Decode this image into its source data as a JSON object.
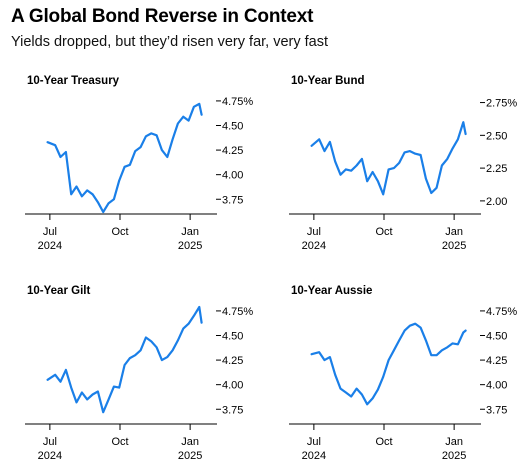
{
  "header": {
    "title": "A Global Bond Reverse in Context",
    "subtitle": "Yields dropped, but they’d risen very far, very fast"
  },
  "colors": {
    "line": "#1a7fe8",
    "axis": "#000000"
  },
  "chart_data": [
    {
      "type": "line",
      "title": "10-Year Treasury",
      "x_ticks": [
        {
          "value": "2024-07",
          "label": "Jul",
          "sub": "2024"
        },
        {
          "value": "2024-10",
          "label": "Oct",
          "sub": ""
        },
        {
          "value": "2025-01",
          "label": "Jan",
          "sub": "2025"
        }
      ],
      "y_ticks": [
        "3.75",
        "4.00",
        "4.25",
        "4.50",
        "4.75%"
      ],
      "y_tick_values": [
        3.75,
        4.0,
        4.25,
        4.5,
        4.75
      ],
      "xlim": [
        "2024-06-01",
        "2025-01-31"
      ],
      "ylim": [
        3.6,
        4.8
      ],
      "x": [
        "2024-06-28",
        "2024-07-08",
        "2024-07-15",
        "2024-07-22",
        "2024-07-29",
        "2024-08-05",
        "2024-08-12",
        "2024-08-19",
        "2024-08-26",
        "2024-09-02",
        "2024-09-09",
        "2024-09-16",
        "2024-09-23",
        "2024-09-30",
        "2024-10-07",
        "2024-10-14",
        "2024-10-21",
        "2024-10-28",
        "2024-11-04",
        "2024-11-11",
        "2024-11-18",
        "2024-11-25",
        "2024-12-02",
        "2024-12-09",
        "2024-12-16",
        "2024-12-23",
        "2024-12-30",
        "2025-01-06",
        "2025-01-13",
        "2025-01-16"
      ],
      "values": [
        4.33,
        4.3,
        4.18,
        4.23,
        3.8,
        3.88,
        3.78,
        3.84,
        3.8,
        3.72,
        3.62,
        3.71,
        3.75,
        3.94,
        4.08,
        4.1,
        4.24,
        4.28,
        4.39,
        4.42,
        4.4,
        4.25,
        4.18,
        4.36,
        4.52,
        4.59,
        4.55,
        4.69,
        4.72,
        4.61
      ]
    },
    {
      "type": "line",
      "title": "10-Year Bund",
      "x_ticks": [
        {
          "value": "2024-07",
          "label": "Jul",
          "sub": "2024"
        },
        {
          "value": "2024-10",
          "label": "Oct",
          "sub": ""
        },
        {
          "value": "2025-01",
          "label": "Jan",
          "sub": "2025"
        }
      ],
      "y_ticks": [
        "2.00",
        "2.25",
        "2.50",
        "2.75%"
      ],
      "y_tick_values": [
        2.0,
        2.25,
        2.5,
        2.75
      ],
      "xlim": [
        "2024-06-01",
        "2025-01-31"
      ],
      "ylim": [
        1.9,
        2.8
      ],
      "x": [
        "2024-06-28",
        "2024-07-08",
        "2024-07-15",
        "2024-07-22",
        "2024-07-29",
        "2024-08-05",
        "2024-08-12",
        "2024-08-19",
        "2024-08-26",
        "2024-09-02",
        "2024-09-09",
        "2024-09-16",
        "2024-09-23",
        "2024-09-30",
        "2024-10-07",
        "2024-10-14",
        "2024-10-21",
        "2024-10-28",
        "2024-11-04",
        "2024-11-11",
        "2024-11-18",
        "2024-11-25",
        "2024-12-02",
        "2024-12-09",
        "2024-12-16",
        "2024-12-23",
        "2024-12-30",
        "2025-01-06",
        "2025-01-13",
        "2025-01-16"
      ],
      "values": [
        2.42,
        2.47,
        2.38,
        2.45,
        2.3,
        2.2,
        2.24,
        2.23,
        2.27,
        2.32,
        2.15,
        2.22,
        2.15,
        2.05,
        2.24,
        2.25,
        2.29,
        2.37,
        2.38,
        2.36,
        2.35,
        2.17,
        2.06,
        2.1,
        2.27,
        2.32,
        2.4,
        2.47,
        2.6,
        2.51
      ]
    },
    {
      "type": "line",
      "title": "10-Year Gilt",
      "x_ticks": [
        {
          "value": "2024-07",
          "label": "Jul",
          "sub": "2024"
        },
        {
          "value": "2024-10",
          "label": "Oct",
          "sub": ""
        },
        {
          "value": "2025-01",
          "label": "Jan",
          "sub": "2025"
        }
      ],
      "y_ticks": [
        "3.75",
        "4.00",
        "4.25",
        "4.50",
        "4.75%"
      ],
      "y_tick_values": [
        3.75,
        4.0,
        4.25,
        4.5,
        4.75
      ],
      "xlim": [
        "2024-06-01",
        "2025-01-31"
      ],
      "ylim": [
        3.6,
        4.8
      ],
      "x": [
        "2024-06-28",
        "2024-07-08",
        "2024-07-15",
        "2024-07-22",
        "2024-07-29",
        "2024-08-05",
        "2024-08-12",
        "2024-08-19",
        "2024-08-26",
        "2024-09-02",
        "2024-09-09",
        "2024-09-16",
        "2024-09-23",
        "2024-09-30",
        "2024-10-07",
        "2024-10-14",
        "2024-10-21",
        "2024-10-28",
        "2024-11-04",
        "2024-11-11",
        "2024-11-18",
        "2024-11-25",
        "2024-12-02",
        "2024-12-09",
        "2024-12-16",
        "2024-12-23",
        "2024-12-30",
        "2025-01-06",
        "2025-01-13",
        "2025-01-16"
      ],
      "values": [
        4.05,
        4.1,
        4.03,
        4.15,
        3.97,
        3.82,
        3.92,
        3.85,
        3.9,
        3.93,
        3.72,
        3.85,
        3.98,
        3.97,
        4.2,
        4.27,
        4.3,
        4.35,
        4.48,
        4.44,
        4.38,
        4.25,
        4.28,
        4.35,
        4.45,
        4.57,
        4.62,
        4.7,
        4.79,
        4.63
      ]
    },
    {
      "type": "line",
      "title": "10-Year Aussie",
      "x_ticks": [
        {
          "value": "2024-07",
          "label": "Jul",
          "sub": "2024"
        },
        {
          "value": "2024-10",
          "label": "Oct",
          "sub": ""
        },
        {
          "value": "2025-01",
          "label": "Jan",
          "sub": "2025"
        }
      ],
      "y_ticks": [
        "3.75",
        "4.00",
        "4.25",
        "4.50",
        "4.75%"
      ],
      "y_tick_values": [
        3.75,
        4.0,
        4.25,
        4.5,
        4.75
      ],
      "xlim": [
        "2024-06-01",
        "2025-01-31"
      ],
      "ylim": [
        3.6,
        4.8
      ],
      "x": [
        "2024-06-28",
        "2024-07-08",
        "2024-07-15",
        "2024-07-22",
        "2024-07-29",
        "2024-08-05",
        "2024-08-12",
        "2024-08-19",
        "2024-08-26",
        "2024-09-02",
        "2024-09-09",
        "2024-09-16",
        "2024-09-23",
        "2024-09-30",
        "2024-10-07",
        "2024-10-14",
        "2024-10-21",
        "2024-10-28",
        "2024-11-04",
        "2024-11-11",
        "2024-11-18",
        "2024-11-25",
        "2024-12-02",
        "2024-12-09",
        "2024-12-16",
        "2024-12-23",
        "2024-12-30",
        "2025-01-06",
        "2025-01-13",
        "2025-01-16"
      ],
      "values": [
        4.31,
        4.33,
        4.25,
        4.28,
        4.1,
        3.96,
        3.92,
        3.88,
        3.96,
        3.9,
        3.8,
        3.86,
        3.95,
        4.08,
        4.25,
        4.35,
        4.45,
        4.55,
        4.6,
        4.62,
        4.58,
        4.45,
        4.3,
        4.3,
        4.35,
        4.38,
        4.42,
        4.41,
        4.53,
        4.55
      ]
    }
  ]
}
